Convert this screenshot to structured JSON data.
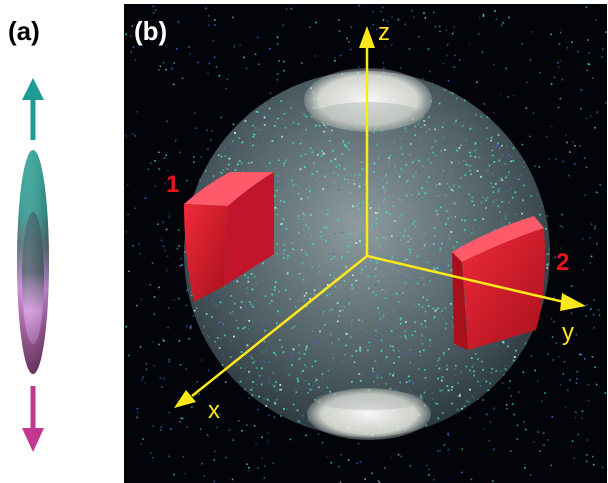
{
  "panel_a": {
    "label": "(a)",
    "colors": {
      "arrow_up": "#1f9a94",
      "arrow_down": "#c2378f",
      "top_end": "#3fc2b2",
      "bottom_end": "#6a2a62",
      "center_light": "#d890ec"
    },
    "icons": [
      "arrow-up-icon",
      "ellipsoid-icon",
      "arrow-down-icon"
    ]
  },
  "panel_b": {
    "label": "(b)",
    "axes": {
      "x": "x",
      "y": "y",
      "z": "z"
    },
    "markers": {
      "marker_1": "1",
      "marker_2": "2"
    },
    "colors": {
      "background": "#02040a",
      "sphere": "#9fb3b6",
      "axis": "#ffe81a",
      "plate": "#d41c2c",
      "marker_text": "#e8161c",
      "points_cyan": "#3fe3c2",
      "points_blue": "#3a6fd6",
      "cap": "#f1f1ea"
    }
  }
}
